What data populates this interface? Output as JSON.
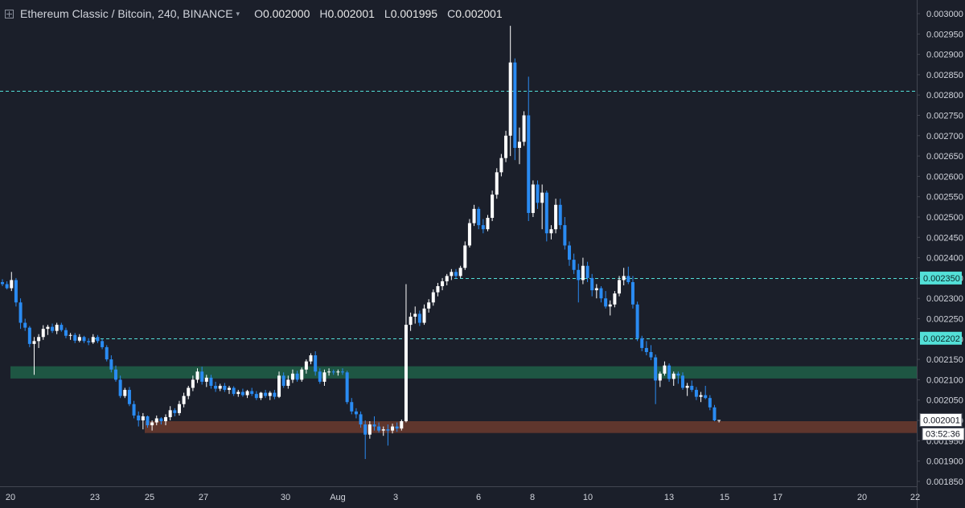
{
  "header": {
    "symbol": "Ethereum Classic / Bitcoin, 240, BINANCE",
    "caret": "▾",
    "ohlc": [
      {
        "label": "O",
        "value": "0.002000"
      },
      {
        "label": "H",
        "value": "0.002001"
      },
      {
        "label": "L",
        "value": "0.001995"
      },
      {
        "label": "C",
        "value": "0.002001"
      }
    ]
  },
  "chart_data": {
    "type": "candlestick",
    "y_range": [
      0.001825,
      0.003025
    ],
    "y_ticks": [
      "0.003000",
      "0.002950",
      "0.002900",
      "0.002850",
      "0.002800",
      "0.002750",
      "0.002700",
      "0.002650",
      "0.002600",
      "0.002550",
      "0.002500",
      "0.002450",
      "0.002400",
      "0.002350",
      "0.002300",
      "0.002250",
      "0.002200",
      "0.002150",
      "0.002100",
      "0.002050",
      "0.002000",
      "0.001950",
      "0.001900",
      "0.001850"
    ],
    "x_ticks": [
      "20",
      "23",
      "25",
      "27",
      "30",
      "Aug",
      "3",
      "6",
      "8",
      "10",
      "13",
      "15",
      "17",
      "20",
      "22"
    ],
    "colors": {
      "up": "#ffffff",
      "down": "#2a8bf2",
      "background": "#1b1f2a",
      "accent": "#53e0d8",
      "support_zone": "#6b3b2e",
      "resistance_zone": "#1f5a45"
    },
    "horizontal_lines": [
      0.00281,
      0.00235,
      0.002202
    ],
    "zones": [
      {
        "name": "green",
        "from": 0.002103,
        "to": 0.002133
      },
      {
        "name": "brown",
        "from": 0.001969,
        "to": 0.001998
      }
    ],
    "price_tags": [
      {
        "value": 0.00235,
        "label": "0.002350",
        "style": "accent"
      },
      {
        "value": 0.002202,
        "label": "0.002202",
        "style": "accent"
      },
      {
        "value": 0.002001,
        "label": "0.002001",
        "style": "light"
      }
    ],
    "countdown": "03:52:36",
    "candles": [
      [
        0.00234,
        0.002347,
        0.00233,
        0.002335
      ],
      [
        0.002335,
        0.002342,
        0.002322,
        0.002325
      ],
      [
        0.002325,
        0.002365,
        0.002318,
        0.002345
      ],
      [
        0.002345,
        0.00235,
        0.00228,
        0.00229
      ],
      [
        0.00229,
        0.0023,
        0.002225,
        0.00224
      ],
      [
        0.00224,
        0.00225,
        0.00222,
        0.002228
      ],
      [
        0.002228,
        0.002232,
        0.00218,
        0.002188
      ],
      [
        0.002188,
        0.002205,
        0.002112,
        0.002195
      ],
      [
        0.002195,
        0.002212,
        0.002178,
        0.002205
      ],
      [
        0.002205,
        0.002234,
        0.002198,
        0.002225
      ],
      [
        0.002225,
        0.002235,
        0.00221,
        0.00223
      ],
      [
        0.00223,
        0.002238,
        0.002215,
        0.00222
      ],
      [
        0.00222,
        0.00224,
        0.002212,
        0.002235
      ],
      [
        0.002235,
        0.00224,
        0.002218,
        0.002222
      ],
      [
        0.002222,
        0.002228,
        0.002202,
        0.002208
      ],
      [
        0.002208,
        0.002215,
        0.002198,
        0.00221
      ],
      [
        0.00221,
        0.002215,
        0.00219,
        0.002196
      ],
      [
        0.002196,
        0.002212,
        0.002192,
        0.002205
      ],
      [
        0.002205,
        0.002208,
        0.00219,
        0.002195
      ],
      [
        0.002195,
        0.002202,
        0.002185,
        0.002192
      ],
      [
        0.002192,
        0.002212,
        0.002188,
        0.002205
      ],
      [
        0.002205,
        0.00221,
        0.00219,
        0.002195
      ],
      [
        0.002195,
        0.0022,
        0.002175,
        0.00218
      ],
      [
        0.00218,
        0.002185,
        0.002145,
        0.00215
      ],
      [
        0.00215,
        0.00216,
        0.002118,
        0.002125
      ],
      [
        0.002125,
        0.002135,
        0.002095,
        0.0021
      ],
      [
        0.0021,
        0.00211,
        0.002055,
        0.00206
      ],
      [
        0.00206,
        0.00208,
        0.002055,
        0.002075
      ],
      [
        0.002075,
        0.002082,
        0.002035,
        0.00204
      ],
      [
        0.00204,
        0.002048,
        0.002005,
        0.002012
      ],
      [
        0.002012,
        0.002022,
        0.001985,
        0.002
      ],
      [
        0.002,
        0.002018,
        0.001978,
        0.00201
      ],
      [
        0.00201,
        0.002012,
        0.001982,
        0.001988
      ],
      [
        0.001988,
        0.002,
        0.001975,
        0.001995
      ],
      [
        0.001995,
        0.002012,
        0.001988,
        0.002005
      ],
      [
        0.002005,
        0.002008,
        0.00199,
        0.001998
      ],
      [
        0.001998,
        0.002015,
        0.001988,
        0.002008
      ],
      [
        0.002008,
        0.002035,
        0.002,
        0.002025
      ],
      [
        0.002025,
        0.00203,
        0.00201,
        0.002018
      ],
      [
        0.002018,
        0.002048,
        0.002012,
        0.00204
      ],
      [
        0.00204,
        0.002068,
        0.002032,
        0.00206
      ],
      [
        0.00206,
        0.002085,
        0.002052,
        0.00208
      ],
      [
        0.00208,
        0.00211,
        0.002072,
        0.0021
      ],
      [
        0.0021,
        0.002128,
        0.002092,
        0.00212
      ],
      [
        0.00212,
        0.002132,
        0.002088,
        0.002095
      ],
      [
        0.002095,
        0.002112,
        0.002082,
        0.002105
      ],
      [
        0.002105,
        0.002112,
        0.002078,
        0.002085
      ],
      [
        0.002085,
        0.002095,
        0.00207,
        0.002078
      ],
      [
        0.002078,
        0.00209,
        0.002072,
        0.002085
      ],
      [
        0.002085,
        0.002092,
        0.00207,
        0.002075
      ],
      [
        0.002075,
        0.002085,
        0.002065,
        0.00208
      ],
      [
        0.00208,
        0.002084,
        0.00206,
        0.002065
      ],
      [
        0.002065,
        0.002075,
        0.002058,
        0.00207
      ],
      [
        0.00207,
        0.002078,
        0.002058,
        0.002062
      ],
      [
        0.002062,
        0.002075,
        0.002055,
        0.002072
      ],
      [
        0.002072,
        0.00208,
        0.00206,
        0.002065
      ],
      [
        0.002065,
        0.002072,
        0.00205,
        0.002055
      ],
      [
        0.002055,
        0.00207,
        0.00205,
        0.002068
      ],
      [
        0.002068,
        0.002075,
        0.002055,
        0.00206
      ],
      [
        0.00206,
        0.002072,
        0.00205,
        0.002068
      ],
      [
        0.002068,
        0.002075,
        0.002052,
        0.002058
      ],
      [
        0.002058,
        0.00212,
        0.002055,
        0.00211
      ],
      [
        0.00211,
        0.002118,
        0.00208,
        0.002085
      ],
      [
        0.002085,
        0.00211,
        0.002078,
        0.0021
      ],
      [
        0.0021,
        0.002125,
        0.002092,
        0.002115
      ],
      [
        0.002115,
        0.002122,
        0.002095,
        0.0021
      ],
      [
        0.0021,
        0.00213,
        0.002095,
        0.002125
      ],
      [
        0.002125,
        0.00215,
        0.002115,
        0.002145
      ],
      [
        0.002145,
        0.002165,
        0.002138,
        0.00216
      ],
      [
        0.00216,
        0.00217,
        0.00211,
        0.00212
      ],
      [
        0.00212,
        0.002128,
        0.00209,
        0.002095
      ],
      [
        0.002095,
        0.002125,
        0.002085,
        0.002118
      ],
      [
        0.002118,
        0.002128,
        0.00211,
        0.00212
      ],
      [
        0.00212,
        0.002125,
        0.002112,
        0.002118
      ],
      [
        0.002118,
        0.002125,
        0.00211,
        0.00212
      ],
      [
        0.00212,
        0.002128,
        0.002112,
        0.002118
      ],
      [
        0.002118,
        0.002122,
        0.00204,
        0.002045
      ],
      [
        0.002045,
        0.002055,
        0.002015,
        0.002022
      ],
      [
        0.002022,
        0.00203,
        0.002005,
        0.002015
      ],
      [
        0.002015,
        0.002022,
        0.001982,
        0.00199
      ],
      [
        0.00199,
        0.002,
        0.001905,
        0.001965
      ],
      [
        0.001965,
        0.001998,
        0.001955,
        0.00199
      ],
      [
        0.00199,
        0.00201,
        0.001975,
        0.001985
      ],
      [
        0.001985,
        0.001995,
        0.00197,
        0.001975
      ],
      [
        0.001975,
        0.001985,
        0.001962,
        0.001978
      ],
      [
        0.001978,
        0.00199,
        0.001938,
        0.001975
      ],
      [
        0.001975,
        0.001992,
        0.001968,
        0.001985
      ],
      [
        0.001985,
        0.001995,
        0.001972,
        0.00198
      ],
      [
        0.00198,
        0.002002,
        0.001975,
        0.001998
      ],
      [
        0.001998,
        0.002335,
        0.001995,
        0.002235
      ],
      [
        0.002235,
        0.002265,
        0.00222,
        0.002255
      ],
      [
        0.002255,
        0.00228,
        0.002238,
        0.002262
      ],
      [
        0.002262,
        0.00227,
        0.002232,
        0.00224
      ],
      [
        0.00224,
        0.002285,
        0.002235,
        0.002275
      ],
      [
        0.002275,
        0.002298,
        0.002265,
        0.00229
      ],
      [
        0.00229,
        0.002322,
        0.002282,
        0.002315
      ],
      [
        0.002315,
        0.002338,
        0.002305,
        0.00233
      ],
      [
        0.00233,
        0.00235,
        0.00232,
        0.002342
      ],
      [
        0.002342,
        0.00236,
        0.002332,
        0.002355
      ],
      [
        0.002355,
        0.002372,
        0.002345,
        0.002365
      ],
      [
        0.002365,
        0.002372,
        0.002348,
        0.002355
      ],
      [
        0.002355,
        0.00238,
        0.00235,
        0.002375
      ],
      [
        0.002375,
        0.00244,
        0.00237,
        0.00243
      ],
      [
        0.00243,
        0.002495,
        0.002425,
        0.002485
      ],
      [
        0.002485,
        0.00253,
        0.002478,
        0.00252
      ],
      [
        0.00252,
        0.002525,
        0.00247,
        0.00248
      ],
      [
        0.00248,
        0.002495,
        0.00246,
        0.00247
      ],
      [
        0.00247,
        0.002505,
        0.002465,
        0.002498
      ],
      [
        0.002498,
        0.002565,
        0.00249,
        0.002555
      ],
      [
        0.002555,
        0.00262,
        0.002545,
        0.00261
      ],
      [
        0.00261,
        0.002655,
        0.0026,
        0.002645
      ],
      [
        0.002645,
        0.002712,
        0.002635,
        0.0027
      ],
      [
        0.0027,
        0.00297,
        0.00265,
        0.00288
      ],
      [
        0.00288,
        0.00289,
        0.00264,
        0.00267
      ],
      [
        0.00267,
        0.00272,
        0.00263,
        0.002685
      ],
      [
        0.002685,
        0.00276,
        0.002675,
        0.00275
      ],
      [
        0.00275,
        0.002845,
        0.00249,
        0.00251
      ],
      [
        0.00251,
        0.00259,
        0.0025,
        0.00258
      ],
      [
        0.00258,
        0.00259,
        0.00252,
        0.002535
      ],
      [
        0.002535,
        0.00258,
        0.00247,
        0.00256
      ],
      [
        0.00256,
        0.002565,
        0.00244,
        0.00246
      ],
      [
        0.00246,
        0.00248,
        0.002445,
        0.00247
      ],
      [
        0.00247,
        0.002545,
        0.00246,
        0.00253
      ],
      [
        0.00253,
        0.002545,
        0.00247,
        0.00248
      ],
      [
        0.00248,
        0.0025,
        0.00242,
        0.00243
      ],
      [
        0.00243,
        0.00244,
        0.00238,
        0.002395
      ],
      [
        0.002395,
        0.00241,
        0.00236,
        0.00237
      ],
      [
        0.00237,
        0.002385,
        0.00229,
        0.002345
      ],
      [
        0.002345,
        0.0024,
        0.002335,
        0.00238
      ],
      [
        0.00238,
        0.00239,
        0.00234,
        0.00235
      ],
      [
        0.00235,
        0.00236,
        0.002305,
        0.00232
      ],
      [
        0.00232,
        0.002335,
        0.0023,
        0.002325
      ],
      [
        0.002325,
        0.00233,
        0.00229,
        0.0023
      ],
      [
        0.0023,
        0.002318,
        0.002275,
        0.00228
      ],
      [
        0.00228,
        0.002295,
        0.002258,
        0.002285
      ],
      [
        0.002285,
        0.002318,
        0.002278,
        0.002312
      ],
      [
        0.002312,
        0.002355,
        0.002305,
        0.002345
      ],
      [
        0.002345,
        0.002375,
        0.002332,
        0.002355
      ],
      [
        0.002355,
        0.002378,
        0.002335,
        0.00234
      ],
      [
        0.00234,
        0.002355,
        0.002275,
        0.002285
      ],
      [
        0.002285,
        0.002292,
        0.002195,
        0.002202
      ],
      [
        0.002202,
        0.002208,
        0.00217,
        0.002178
      ],
      [
        0.002178,
        0.002195,
        0.00216,
        0.002168
      ],
      [
        0.002168,
        0.002185,
        0.002148,
        0.002155
      ],
      [
        0.002155,
        0.002162,
        0.00204,
        0.002098
      ],
      [
        0.002098,
        0.00212,
        0.002082,
        0.002115
      ],
      [
        0.002115,
        0.002145,
        0.00211,
        0.002135
      ],
      [
        0.002135,
        0.00214,
        0.002095,
        0.002102
      ],
      [
        0.002102,
        0.00212,
        0.002085,
        0.002115
      ],
      [
        0.002115,
        0.00212,
        0.00209,
        0.00211
      ],
      [
        0.00211,
        0.002118,
        0.002075,
        0.00208
      ],
      [
        0.00208,
        0.002092,
        0.00206,
        0.002085
      ],
      [
        0.002085,
        0.002098,
        0.00207,
        0.002075
      ],
      [
        0.002075,
        0.002082,
        0.00205,
        0.002058
      ],
      [
        0.002058,
        0.00207,
        0.002045,
        0.002062
      ],
      [
        0.002062,
        0.002085,
        0.002052,
        0.002055
      ],
      [
        0.002055,
        0.002062,
        0.002025,
        0.002032
      ],
      [
        0.002032,
        0.002038,
        0.001998,
        0.002
      ],
      [
        0.002,
        0.002001,
        0.001995,
        0.002001
      ]
    ]
  }
}
